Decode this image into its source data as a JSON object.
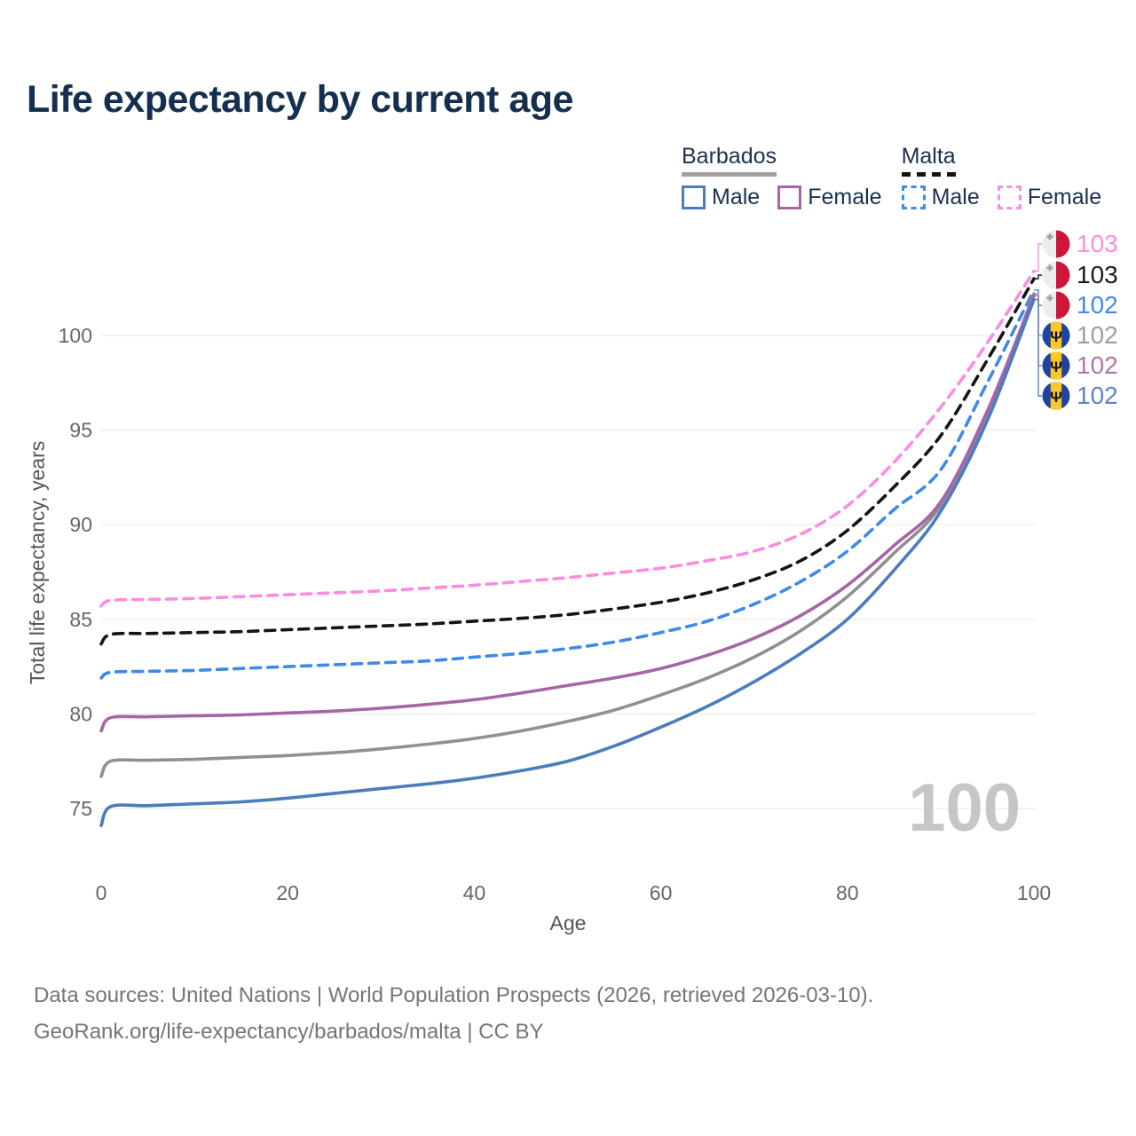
{
  "title": "Life expectancy by current age",
  "legend": {
    "groups": [
      {
        "country": "Barbados",
        "underline_style": "solid",
        "underline_color": "#a0a0a0",
        "items": [
          {
            "label": "Male",
            "color": "#4a7cbe",
            "dashed": false
          },
          {
            "label": "Female",
            "color": "#a765a5",
            "dashed": false
          }
        ]
      },
      {
        "country": "Malta",
        "underline_style": "dashed",
        "underline_color": "#141414",
        "items": [
          {
            "label": "Male",
            "color": "#3d8ae8",
            "dashed": true
          },
          {
            "label": "Female",
            "color": "#fa8ce2",
            "dashed": true
          }
        ]
      }
    ]
  },
  "chart_data": {
    "type": "line",
    "title": "Life expectancy by current age",
    "xlabel": "Age",
    "ylabel": "Total life expectancy, years",
    "xlim": [
      0,
      100
    ],
    "ylim": [
      73,
      104
    ],
    "xticks": [
      0,
      20,
      40,
      60,
      80,
      100
    ],
    "yticks": [
      75,
      80,
      85,
      90,
      95,
      100
    ],
    "grid": "horizontal-only",
    "legend_position": "top-right",
    "watermark": "100",
    "x": [
      0,
      1,
      5,
      10,
      15,
      20,
      25,
      30,
      35,
      40,
      45,
      50,
      55,
      60,
      65,
      70,
      75,
      80,
      85,
      90,
      95,
      100
    ],
    "series": [
      {
        "name": "Malta Female",
        "country": "Malta",
        "sex": "female",
        "color": "#fa8ce2",
        "dash": true,
        "values": [
          85.7,
          86.0,
          86.05,
          86.1,
          86.2,
          86.3,
          86.4,
          86.5,
          86.65,
          86.8,
          87.0,
          87.2,
          87.45,
          87.7,
          88.1,
          88.6,
          89.5,
          91.0,
          93.3,
          96.2,
          99.6,
          103.4
        ]
      },
      {
        "name": "Malta",
        "country": "Malta",
        "sex": "both",
        "color": "#141414",
        "dash": true,
        "values": [
          83.7,
          84.2,
          84.25,
          84.3,
          84.35,
          84.45,
          84.55,
          84.65,
          84.75,
          84.9,
          85.05,
          85.25,
          85.55,
          85.9,
          86.4,
          87.1,
          88.1,
          89.7,
          92.0,
          94.7,
          98.7,
          103.0
        ]
      },
      {
        "name": "Malta Male",
        "country": "Malta",
        "sex": "male",
        "color": "#3d8ae8",
        "dash": true,
        "values": [
          81.9,
          82.2,
          82.25,
          82.3,
          82.4,
          82.5,
          82.6,
          82.7,
          82.8,
          83.0,
          83.2,
          83.45,
          83.8,
          84.3,
          84.9,
          85.8,
          87.0,
          88.6,
          90.8,
          92.9,
          97.5,
          102.4
        ]
      },
      {
        "name": "Barbados",
        "country": "Barbados",
        "sex": "both",
        "color": "#909090",
        "dash": false,
        "values": [
          76.7,
          77.5,
          77.55,
          77.6,
          77.7,
          77.8,
          77.95,
          78.15,
          78.4,
          78.7,
          79.1,
          79.6,
          80.2,
          81.0,
          81.9,
          83.0,
          84.4,
          86.2,
          88.5,
          91.0,
          95.8,
          102.2
        ]
      },
      {
        "name": "Barbados Female",
        "country": "Barbados",
        "sex": "female",
        "color": "#a765a5",
        "dash": false,
        "values": [
          79.1,
          79.8,
          79.85,
          79.9,
          79.95,
          80.05,
          80.15,
          80.3,
          80.5,
          80.75,
          81.1,
          81.5,
          81.9,
          82.4,
          83.1,
          84.0,
          85.2,
          86.8,
          88.9,
          91.2,
          96.0,
          102.1
        ]
      },
      {
        "name": "Barbados Male",
        "country": "Barbados",
        "sex": "male",
        "color": "#4a7cbe",
        "dash": false,
        "values": [
          74.1,
          75.1,
          75.15,
          75.25,
          75.35,
          75.55,
          75.8,
          76.05,
          76.3,
          76.6,
          77.0,
          77.5,
          78.3,
          79.3,
          80.4,
          81.7,
          83.2,
          85.0,
          87.6,
          90.7,
          95.5,
          101.9
        ]
      }
    ]
  },
  "end_labels": [
    {
      "text": "103",
      "flag": "malta",
      "series": "Malta Female",
      "color": "#fa8ce2"
    },
    {
      "text": "103",
      "flag": "malta",
      "series": "Malta",
      "color": "#1a1a1a"
    },
    {
      "text": "102",
      "flag": "malta",
      "series": "Malta Male",
      "color": "#4189e6"
    },
    {
      "text": "102",
      "flag": "barbados",
      "series": "Barbados",
      "color": "#9e9e9e"
    },
    {
      "text": "102",
      "flag": "barbados",
      "series": "Barbados Female",
      "color": "#b273ae"
    },
    {
      "text": "102",
      "flag": "barbados",
      "series": "Barbados Male",
      "color": "#5b84c4"
    }
  ],
  "flags": {
    "malta": {
      "white": "#ededed",
      "red": "#d0153a",
      "cross": "#9aa0a6"
    },
    "barbados": {
      "blue": "#1d44a0",
      "yellow": "#ffc726",
      "trident": "#111111"
    }
  },
  "colors": {
    "title": "#15304e",
    "tick_label": "#666666",
    "axis_title": "#555555",
    "gridline": "#ececec",
    "watermark": "#c6c6c6",
    "footer": "#757575"
  },
  "footer": {
    "line1": "Data sources: United Nations | World Population Prospects (2026, retrieved 2026-03-10).",
    "line2": "GeoRank.org/life-expectancy/barbados/malta | CC BY"
  }
}
